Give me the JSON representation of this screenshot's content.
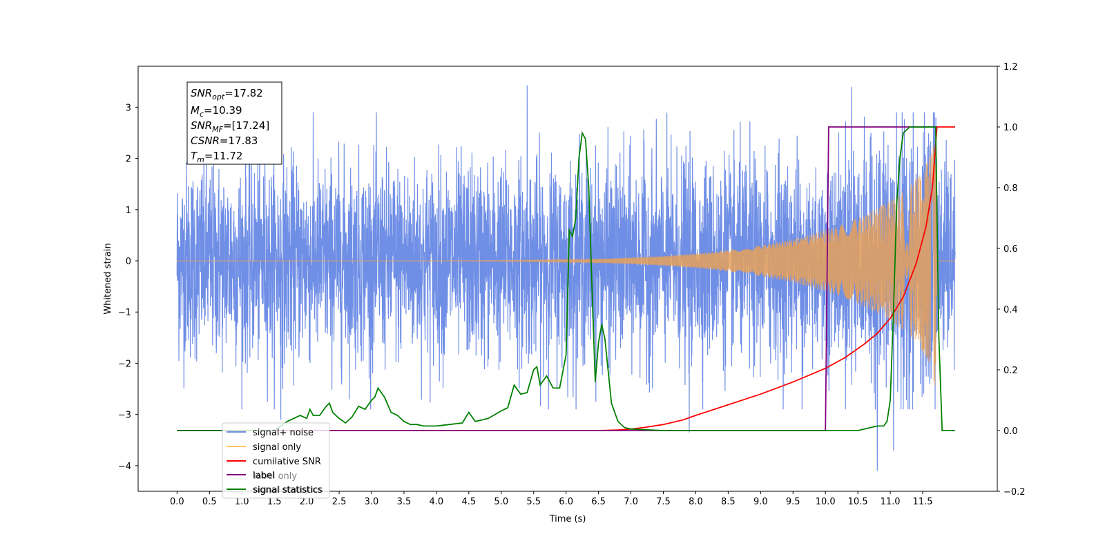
{
  "chart_data": {
    "type": "line",
    "xlabel": "Time (s)",
    "ylabel": "Whitened strain",
    "xlim": [
      -0.6,
      12.65
    ],
    "ylim": [
      -4.5,
      3.8
    ],
    "ylim_right": [
      -0.2,
      1.2
    ],
    "x_ticks": [
      "0.0",
      "0.5",
      "1.0",
      "1.5",
      "2.0",
      "2.5",
      "3.0",
      "3.5",
      "4.0",
      "4.5",
      "5.0",
      "5.5",
      "6.0",
      "6.5",
      "7.0",
      "7.5",
      "8.0",
      "8.5",
      "9.0",
      "9.5",
      "10.0",
      "10.5",
      "11.0",
      "11.5"
    ],
    "y_ticks_left": [
      "−4",
      "−3",
      "−2",
      "−1",
      "0",
      "1",
      "2",
      "3"
    ],
    "y_ticks_right": [
      "−0.2",
      "0.0",
      "0.2",
      "0.4",
      "0.6",
      "0.8",
      "1.0",
      "1.2"
    ],
    "grid": false,
    "legend_placement": "lower-left",
    "annotation": {
      "lines": [
        {
          "base": "SNR",
          "sub": "opt",
          "value": "=17.82"
        },
        {
          "base": "M",
          "sub": "c",
          "value": "=10.39"
        },
        {
          "base": "SNR",
          "sub": "MF",
          "value": "=[17.24]"
        },
        {
          "base": "CSNR",
          "sub": "",
          "value": "=17.83"
        },
        {
          "base": "T",
          "sub": "m",
          "value": "=11.72"
        }
      ]
    },
    "series": [
      {
        "name": "signal+ noise",
        "axis": "left",
        "color": "#6f8ee5",
        "x_range": [
          0.0,
          12.0
        ],
        "noise_std": 0.95,
        "envelope_from": 0.0,
        "notable_spikes": [
          [
            1.6,
            -3.1
          ],
          [
            5.4,
            3.43
          ],
          [
            7.9,
            -3.35
          ],
          [
            10.8,
            -4.1
          ],
          [
            10.4,
            3.4
          ],
          [
            11.05,
            -3.7
          ]
        ]
      },
      {
        "name": "signal only",
        "axis": "left",
        "color": "#e8a15a",
        "x_range": [
          0.0,
          12.0
        ],
        "merger_time": 11.72,
        "peak_amplitude": 2.65
      },
      {
        "name": "cumilative SNR",
        "axis": "right",
        "color": "#ff0000",
        "x": [
          0.0,
          5.0,
          6.5,
          6.8,
          7.0,
          7.2,
          7.5,
          7.8,
          8.0,
          8.5,
          9.0,
          9.5,
          10.0,
          10.3,
          10.6,
          10.8,
          11.0,
          11.2,
          11.4,
          11.55,
          11.65,
          11.72,
          12.0
        ],
        "values": [
          0.0,
          0.0,
          0.0,
          0.002,
          0.005,
          0.01,
          0.02,
          0.035,
          0.05,
          0.085,
          0.12,
          0.16,
          0.205,
          0.24,
          0.285,
          0.32,
          0.37,
          0.44,
          0.55,
          0.67,
          0.8,
          1.0,
          1.0
        ]
      },
      {
        "name": "label",
        "axis": "right",
        "color": "#800080",
        "x": [
          0.0,
          10.0,
          10.05,
          11.72
        ],
        "values": [
          0.0,
          0.0,
          1.0,
          1.0
        ]
      },
      {
        "name": "signal statistics",
        "axis": "right",
        "color": "#008000",
        "x": [
          0.0,
          0.5,
          1.0,
          1.5,
          1.7,
          1.8,
          1.9,
          2.0,
          2.05,
          2.1,
          2.2,
          2.3,
          2.35,
          2.4,
          2.5,
          2.6,
          2.7,
          2.8,
          2.9,
          3.0,
          3.05,
          3.1,
          3.2,
          3.3,
          3.4,
          3.5,
          3.6,
          3.7,
          3.8,
          4.0,
          4.2,
          4.4,
          4.5,
          4.6,
          4.7,
          4.8,
          5.0,
          5.1,
          5.2,
          5.3,
          5.4,
          5.5,
          5.55,
          5.6,
          5.7,
          5.8,
          5.9,
          6.0,
          6.05,
          6.1,
          6.15,
          6.2,
          6.25,
          6.3,
          6.35,
          6.4,
          6.45,
          6.5,
          6.55,
          6.6,
          6.7,
          6.8,
          6.9,
          7.0,
          7.5,
          10.5,
          10.7,
          10.8,
          10.9,
          10.95,
          11.0,
          11.05,
          11.1,
          11.15,
          11.2,
          11.25,
          11.3,
          11.5,
          11.7,
          11.75,
          11.8,
          11.85,
          12.0
        ],
        "values": [
          0.0,
          0.0,
          0.0,
          0.0,
          0.03,
          0.04,
          0.05,
          0.04,
          0.07,
          0.05,
          0.05,
          0.08,
          0.09,
          0.06,
          0.04,
          0.025,
          0.045,
          0.08,
          0.07,
          0.1,
          0.11,
          0.14,
          0.11,
          0.06,
          0.05,
          0.03,
          0.02,
          0.02,
          0.015,
          0.015,
          0.02,
          0.025,
          0.06,
          0.03,
          0.035,
          0.04,
          0.065,
          0.075,
          0.15,
          0.12,
          0.125,
          0.2,
          0.21,
          0.15,
          0.18,
          0.14,
          0.14,
          0.25,
          0.66,
          0.64,
          0.7,
          0.9,
          0.98,
          0.96,
          0.8,
          0.47,
          0.16,
          0.29,
          0.35,
          0.3,
          0.09,
          0.03,
          0.01,
          0.005,
          0.0,
          0.0,
          0.01,
          0.015,
          0.015,
          0.03,
          0.1,
          0.4,
          0.75,
          0.9,
          0.98,
          0.99,
          1.0,
          1.0,
          1.0,
          0.3,
          0.0,
          0.0,
          0.0
        ]
      }
    ]
  },
  "legend": {
    "items": [
      {
        "label": "signal+ noise",
        "color": "#6f8ee5"
      },
      {
        "label": "signal only",
        "color": "#ffc266"
      },
      {
        "label": "cumilative SNR",
        "color": "#ff0000"
      },
      {
        "label": "label",
        "color": "#800080"
      },
      {
        "label": "signal statistics",
        "color": "#008000"
      }
    ],
    "ghost_labels": [
      "label only",
      "signal statistics"
    ]
  }
}
